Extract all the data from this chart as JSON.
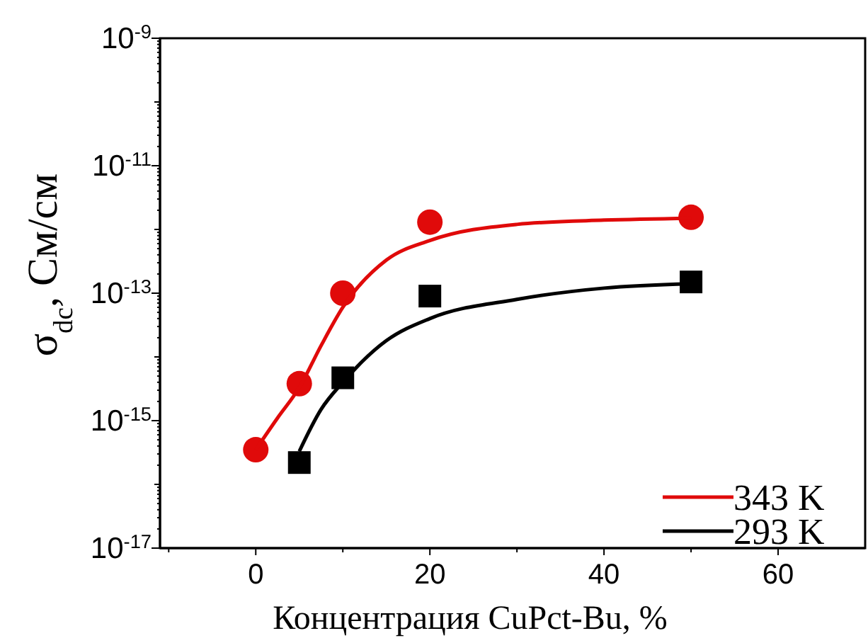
{
  "chart_data": {
    "type": "scatter",
    "xlabel": "Концентрация CuPct-Bu, %",
    "ylabel": "σ$_{dc}$, См/см",
    "xlim": [
      -11,
      70
    ],
    "xticks": [
      {
        "value": -10,
        "label": null
      },
      0,
      {
        "value": 10,
        "label": null
      },
      20,
      {
        "value": 30,
        "label": null
      },
      40,
      {
        "value": 50,
        "label": null
      },
      60
    ],
    "ylim": [
      1e-17,
      1e-09
    ],
    "log": true,
    "yticks": [
      {
        "value": 1e-17,
        "label": "10$^{-17}$"
      },
      {
        "value": 1e-16,
        "label": null
      },
      {
        "value": 1e-15,
        "label": "10$^{-15}$"
      },
      {
        "value": 1e-14,
        "label": null
      },
      {
        "value": 1e-13,
        "label": "10$^{-13}$"
      },
      {
        "value": 1e-12,
        "label": null
      },
      {
        "value": 1e-11,
        "label": "10$^{-11}$"
      },
      {
        "value": 1e-10,
        "label": null
      },
      {
        "value": 1e-09,
        "label": "10$^{-9}$"
      }
    ],
    "legend": "bottom right",
    "grid": false,
    "series": [
      {
        "marker": "circle",
        "color": "#e00a0a",
        "x": [
          0,
          5,
          10,
          20,
          50
        ],
        "values": [
          3.5e-16,
          3.8e-15,
          1e-13,
          1.3e-12,
          1.55e-12
        ]
      },
      {
        "marker": "square",
        "color": "#000000",
        "x": [
          5,
          10,
          20,
          50
        ],
        "values": [
          2.2e-16,
          4.7e-15,
          9e-14,
          1.5e-13
        ]
      },
      {
        "type": "line",
        "name": "343 K",
        "color": "#e00a0a",
        "x": [
          0,
          2.5,
          5,
          7.5,
          10,
          15,
          20,
          30,
          40,
          50
        ],
        "values": [
          3.5e-16,
          1.1e-15,
          3.3e-15,
          1.5e-14,
          6e-14,
          3.3e-13,
          6.7e-13,
          1.2e-12,
          1.4e-12,
          1.5e-12
        ]
      },
      {
        "type": "line",
        "name": "293 K",
        "color": "#000000",
        "x": [
          5,
          7.5,
          10,
          15,
          20,
          30,
          40,
          50
        ],
        "values": [
          3.3e-16,
          1.5e-15,
          4e-15,
          1.8e-14,
          4e-14,
          8e-14,
          1.2e-13,
          1.4e-13
        ]
      }
    ]
  }
}
